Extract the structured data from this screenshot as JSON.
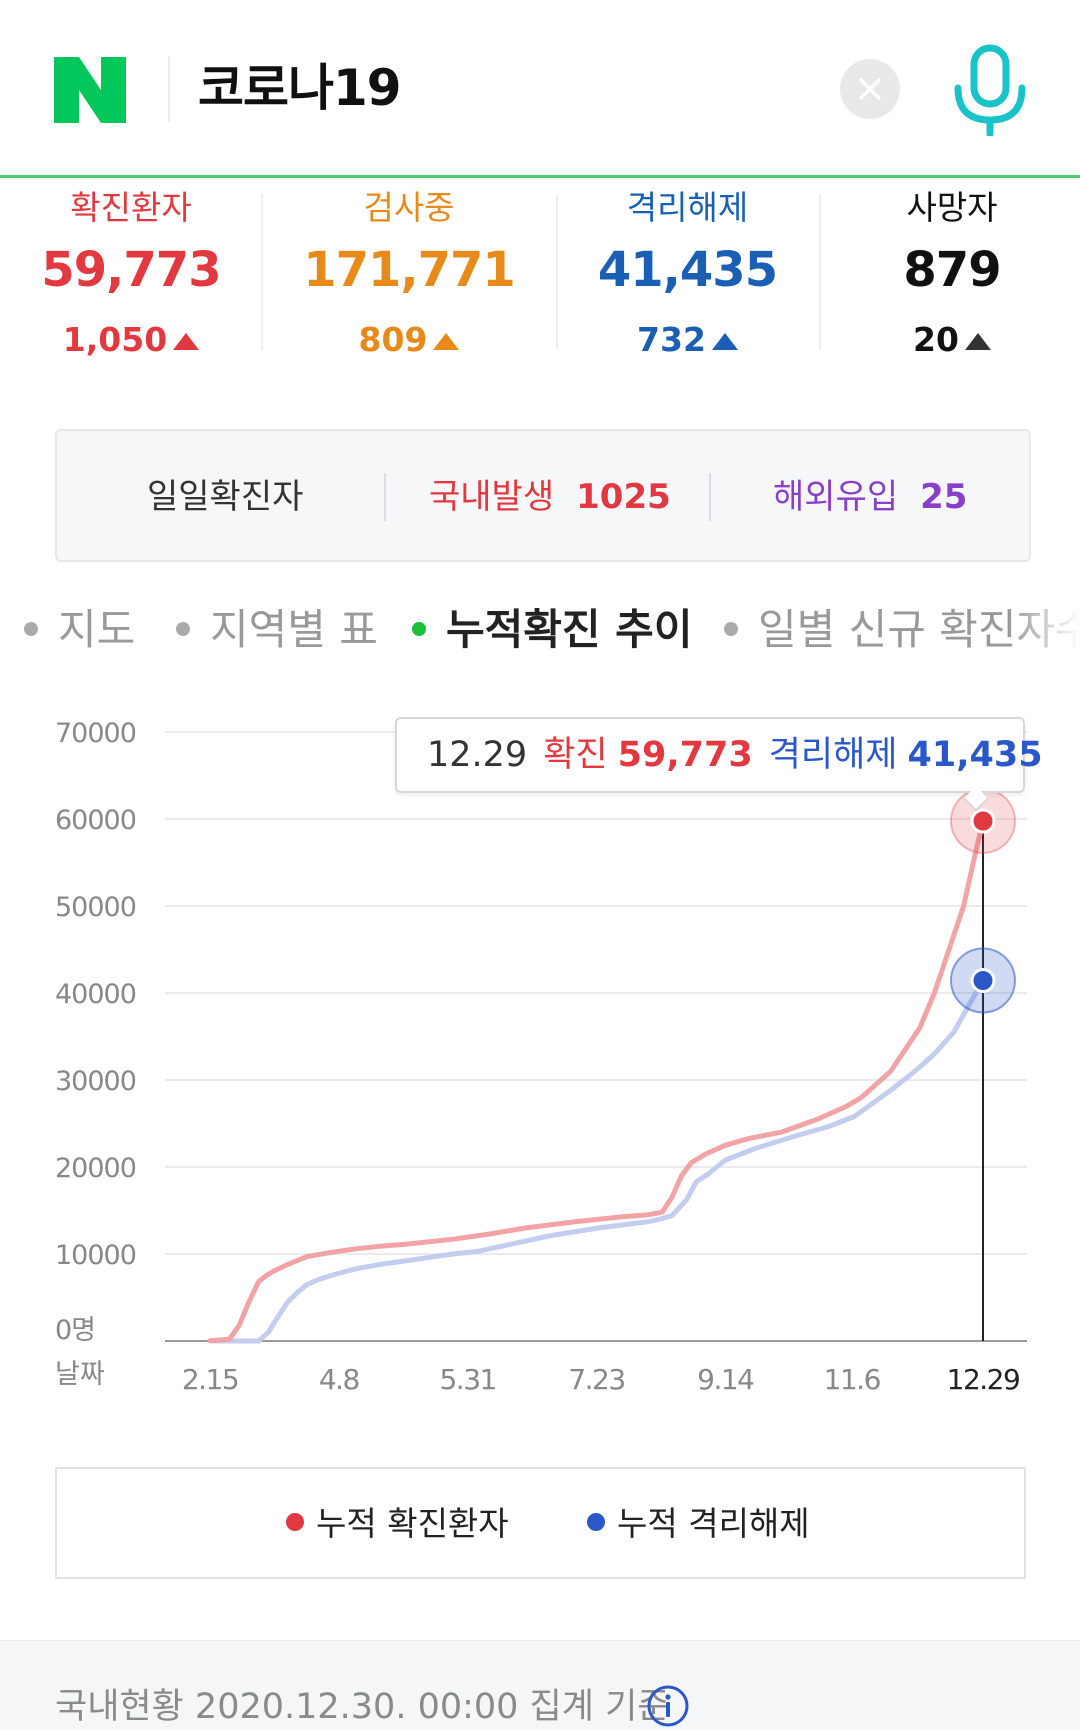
{
  "header": {
    "logo_letter": "N",
    "query": "코로나19"
  },
  "stats": [
    {
      "label": "확진환자",
      "value": "59,773",
      "delta": "1,050",
      "color": "#e2383f"
    },
    {
      "label": "검사중",
      "value": "171,771",
      "delta": "809",
      "color": "#e78a1a"
    },
    {
      "label": "격리해제",
      "value": "41,435",
      "delta": "732",
      "color": "#1a5fb4"
    },
    {
      "label": "사망자",
      "value": "879",
      "delta": "20",
      "color": "#111111"
    }
  ],
  "daily": {
    "title": "일일확진자",
    "domestic_label": "국내발생",
    "domestic_value": "1025",
    "overseas_label": "해외유입",
    "overseas_value": "25"
  },
  "tabs": [
    {
      "label": "지도",
      "active": false
    },
    {
      "label": "지역별 표",
      "active": false
    },
    {
      "label": "누적확진 추이",
      "active": true
    },
    {
      "label": "일별 신규 확진자수",
      "active": false
    }
  ],
  "tooltip": {
    "date": "12.29",
    "confirmed_label": "확진",
    "confirmed_value": "59,773",
    "released_label": "격리해제",
    "released_value": "41,435"
  },
  "chart_data": {
    "type": "line",
    "ylim": [
      0,
      70000
    ],
    "yticks": [
      "70000",
      "60000",
      "50000",
      "40000",
      "30000",
      "20000",
      "10000",
      "0명"
    ],
    "ytick_values": [
      70000,
      60000,
      50000,
      40000,
      30000,
      20000,
      10000,
      0
    ],
    "x_axis_name": "날짜",
    "x_ticks": [
      "2.15",
      "4.8",
      "5.31",
      "7.23",
      "9.14",
      "11.6",
      "12.29"
    ],
    "x_tick_days": [
      0,
      53,
      106,
      159,
      212,
      264,
      318
    ],
    "series": [
      {
        "name": "누적 확진환자",
        "color": "#f2a3a6",
        "marker_color": "#e2383f",
        "x_days": [
          0,
          8,
          12,
          16,
          20,
          23,
          26,
          32,
          40,
          50,
          60,
          70,
          80,
          90,
          100,
          115,
          130,
          150,
          170,
          180,
          186,
          190,
          194,
          198,
          204,
          212,
          222,
          235,
          250,
          262,
          268,
          274,
          280,
          286,
          292,
          298,
          304,
          310,
          314,
          318
        ],
        "y": [
          30,
          200,
          1800,
          4500,
          6800,
          7500,
          8000,
          8800,
          9700,
          10200,
          10600,
          10900,
          11100,
          11400,
          11700,
          12300,
          13000,
          13700,
          14300,
          14500,
          14800,
          16500,
          19000,
          20500,
          21500,
          22500,
          23300,
          24000,
          25500,
          27000,
          28000,
          29500,
          31000,
          33500,
          36000,
          40000,
          45000,
          50000,
          55000,
          59773
        ]
      },
      {
        "name": "누적 격리해제",
        "color": "#c3cdf0",
        "marker_color": "#2a58c8",
        "x_days": [
          0,
          20,
          24,
          28,
          32,
          36,
          40,
          45,
          52,
          60,
          70,
          80,
          90,
          100,
          110,
          125,
          140,
          160,
          180,
          185,
          190,
          196,
          200,
          205,
          212,
          225,
          240,
          255,
          265,
          272,
          280,
          290,
          298,
          306,
          312,
          318
        ],
        "y": [
          0,
          0,
          1000,
          2800,
          4500,
          5600,
          6500,
          7100,
          7700,
          8300,
          8800,
          9200,
          9600,
          10000,
          10300,
          11200,
          12100,
          13000,
          13700,
          14000,
          14400,
          16200,
          18300,
          19200,
          20800,
          22200,
          23500,
          24700,
          25800,
          27200,
          28800,
          31000,
          33000,
          35500,
          38500,
          41435
        ]
      }
    ],
    "highlight_day": 318,
    "grid": true
  },
  "legend": {
    "confirmed": "누적 확진환자",
    "released": "누적 격리해제",
    "confirmed_color": "#e2383f",
    "released_color": "#2a58c8"
  },
  "footer": {
    "text": "국내현황 2020.12.30. 00:00 집계 기준"
  },
  "colors": {
    "accent_green": "#03c75a",
    "header_line": "#4ccb6f",
    "mic": "#19c3c8"
  },
  "icons": [
    "naver-logo-icon",
    "close-icon",
    "microphone-icon",
    "info-icon"
  ]
}
